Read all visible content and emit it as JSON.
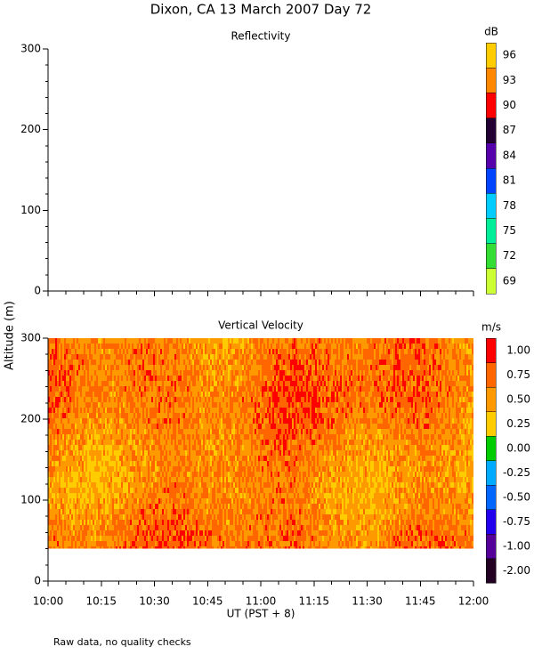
{
  "title": "Dixon, CA 13 March 2007  Day  72",
  "y_label": "Altitude (m)",
  "x_label": "UT  (PST + 8)",
  "note": "Raw data, no quality checks",
  "xticks": [
    "10:00",
    "10:15",
    "10:30",
    "10:45",
    "11:00",
    "11:15",
    "11:30",
    "11:45",
    "12:00"
  ],
  "chart_data": [
    {
      "type": "heatmap",
      "title": "Reflectivity",
      "ylim": [
        0,
        300
      ],
      "yticks": [
        0,
        100,
        200,
        300
      ],
      "colorbar": {
        "label": "dB",
        "ticks": [
          69,
          72,
          75,
          78,
          81,
          84,
          87,
          90,
          93,
          96
        ],
        "colors": [
          "#ccff33",
          "#33dd33",
          "#00ee99",
          "#00ccff",
          "#0044ff",
          "#5500aa",
          "#220033",
          "#ff0000",
          "#ff8800",
          "#ffcc00"
        ]
      }
    },
    {
      "type": "heatmap",
      "title": "Vertical Velocity",
      "ylim": [
        0,
        300
      ],
      "yticks": [
        0,
        100,
        200,
        300
      ],
      "data_ylim": [
        40,
        300
      ],
      "colorbar": {
        "label": "m/s",
        "ticks": [
          {
            "value": -2,
            "label": "-2.00"
          },
          {
            "value": -1,
            "label": "-1.00"
          },
          {
            "value": -0.75,
            "label": "-0.75"
          },
          {
            "value": -0.5,
            "label": "-0.50"
          },
          {
            "value": -0.25,
            "label": "-0.25"
          },
          {
            "value": 0,
            "label": "0.00"
          },
          {
            "value": 0.25,
            "label": "0.25"
          },
          {
            "value": 0.5,
            "label": "0.50"
          },
          {
            "value": 0.75,
            "label": "0.75"
          },
          {
            "value": 1,
            "label": "1.00"
          }
        ],
        "colors": [
          "#220022",
          "#550099",
          "#2200ee",
          "#0066ff",
          "#00aaff",
          "#00cc00",
          "#ffcc00",
          "#ff9900",
          "#ff6600",
          "#ff0000"
        ]
      }
    }
  ]
}
